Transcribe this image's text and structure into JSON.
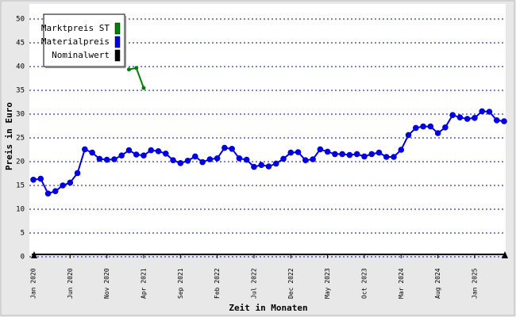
{
  "chart_data": {
    "type": "line",
    "x_label": "Zeit in Monaten",
    "y_label": "Preis in Euro",
    "categories": [
      "Jan 2020",
      null,
      null,
      null,
      null,
      "Jun 2020",
      null,
      null,
      null,
      null,
      "Nov 2020",
      null,
      null,
      null,
      null,
      "Apr 2021",
      null,
      null,
      null,
      null,
      "Sep 2021",
      null,
      null,
      null,
      null,
      "Feb 2022",
      null,
      null,
      null,
      null,
      "Jul 2022",
      null,
      null,
      null,
      null,
      "Dec 2022",
      null,
      null,
      null,
      null,
      "May 2023",
      null,
      null,
      null,
      null,
      "Oct 2023",
      null,
      null,
      null,
      null,
      "Mar 2024",
      null,
      null,
      null,
      null,
      "Aug 2024",
      null,
      null,
      null,
      null,
      "Jan 2025",
      null,
      null,
      null,
      null
    ],
    "series": [
      {
        "name": "Marktpreis ST",
        "color": "#008000",
        "values": [
          null,
          null,
          null,
          null,
          null,
          null,
          null,
          null,
          null,
          null,
          null,
          null,
          null,
          39.4,
          39.7,
          35.5,
          null,
          null,
          null,
          null,
          null,
          null,
          null,
          null,
          null,
          null,
          null,
          null,
          null,
          null,
          null,
          null,
          null,
          null,
          null,
          null,
          null,
          null,
          null,
          null,
          null,
          null,
          null,
          null,
          null,
          null,
          null,
          null,
          null,
          null,
          null,
          null,
          null,
          null,
          null,
          null,
          null,
          null,
          null,
          null,
          null,
          null,
          null,
          null,
          null
        ]
      },
      {
        "name": "Materialpreis",
        "color": "#0000e0",
        "values": [
          16.2,
          16.4,
          13.3,
          13.8,
          15.0,
          15.6,
          17.6,
          22.6,
          21.9,
          20.6,
          20.4,
          20.5,
          21.3,
          22.4,
          21.5,
          21.3,
          22.4,
          22.2,
          21.7,
          20.3,
          19.7,
          20.2,
          21.1,
          19.9,
          20.5,
          20.7,
          22.9,
          22.7,
          20.7,
          20.4,
          18.9,
          19.3,
          19.0,
          19.6,
          20.6,
          21.9,
          22.0,
          20.3,
          20.5,
          22.6,
          22.1,
          21.6,
          21.6,
          21.4,
          21.6,
          21.1,
          21.6,
          21.9,
          21.0,
          21.0,
          22.5,
          25.6,
          27.1,
          27.4,
          27.4,
          26.0,
          27.2,
          29.8,
          29.3,
          29.0,
          29.2,
          30.6,
          30.5,
          28.7,
          28.5
        ]
      },
      {
        "name": "Nominalwert",
        "color": "#000000",
        "values": [
          null,
          null,
          null,
          null,
          null,
          null,
          null,
          null,
          null,
          null,
          null,
          null,
          null,
          null,
          null,
          null,
          null,
          null,
          null,
          null,
          null,
          null,
          null,
          null,
          null,
          null,
          null,
          null,
          null,
          null,
          null,
          null,
          null,
          null,
          null,
          null,
          null,
          null,
          null,
          null,
          null,
          null,
          null,
          null,
          null,
          null,
          null,
          null,
          null,
          null,
          null,
          null,
          null,
          null,
          null,
          null,
          null,
          null,
          null,
          null,
          null,
          null,
          null,
          null,
          null
        ]
      }
    ],
    "ylim": [
      0,
      50
    ],
    "yticks": [
      0,
      5,
      10,
      15,
      20,
      25,
      30,
      35,
      40,
      45,
      50
    ],
    "grid": true,
    "legend": "top-left"
  }
}
